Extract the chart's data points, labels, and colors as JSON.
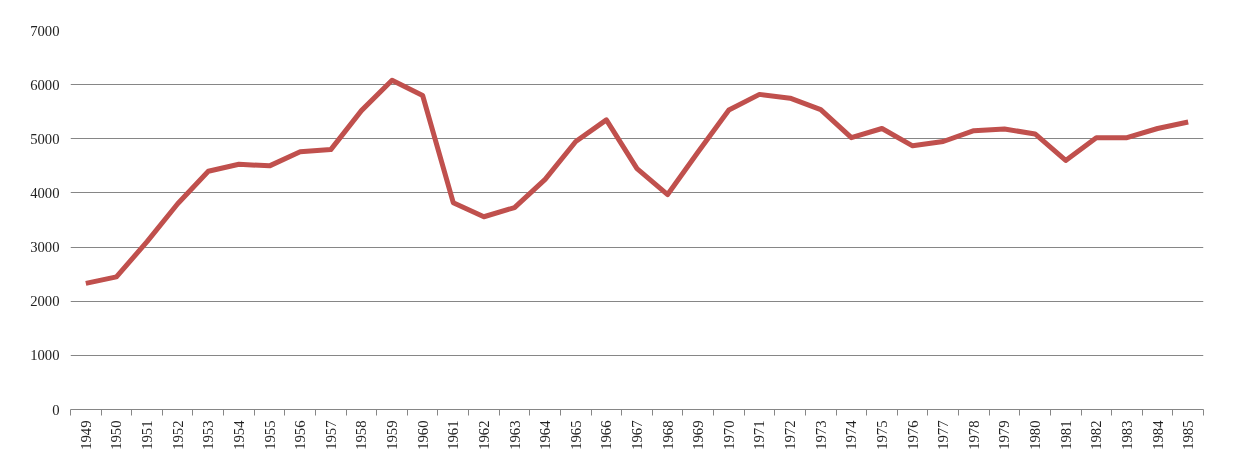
{
  "chart_data": {
    "type": "line",
    "categories": [
      "1949",
      "1950",
      "1951",
      "1952",
      "1953",
      "1954",
      "1955",
      "1956",
      "1957",
      "1958",
      "1959",
      "1960",
      "1961",
      "1962",
      "1963",
      "1964",
      "1965",
      "1966",
      "1967",
      "1968",
      "1969",
      "1970",
      "1971",
      "1972",
      "1973",
      "1974",
      "1975",
      "1976",
      "1977",
      "1978",
      "1979",
      "1980",
      "1981",
      "1982",
      "1983",
      "1984",
      "1985"
    ],
    "series": [
      {
        "color": "#c0504d",
        "values": [
          2330,
          2450,
          3100,
          3800,
          4400,
          4530,
          4500,
          4760,
          4800,
          5520,
          6080,
          5800,
          3820,
          3560,
          3730,
          4250,
          4950,
          5350,
          4450,
          3970,
          4760,
          5530,
          5820,
          5750,
          5540,
          5020,
          5190,
          4870,
          4950,
          5150,
          5180,
          5090,
          4600,
          5020,
          5020,
          5190,
          5310
        ]
      }
    ],
    "ylim": [
      0,
      7000
    ],
    "yticks": [
      0,
      1000,
      2000,
      3000,
      4000,
      5000,
      6000,
      7000
    ],
    "grid": "y"
  }
}
